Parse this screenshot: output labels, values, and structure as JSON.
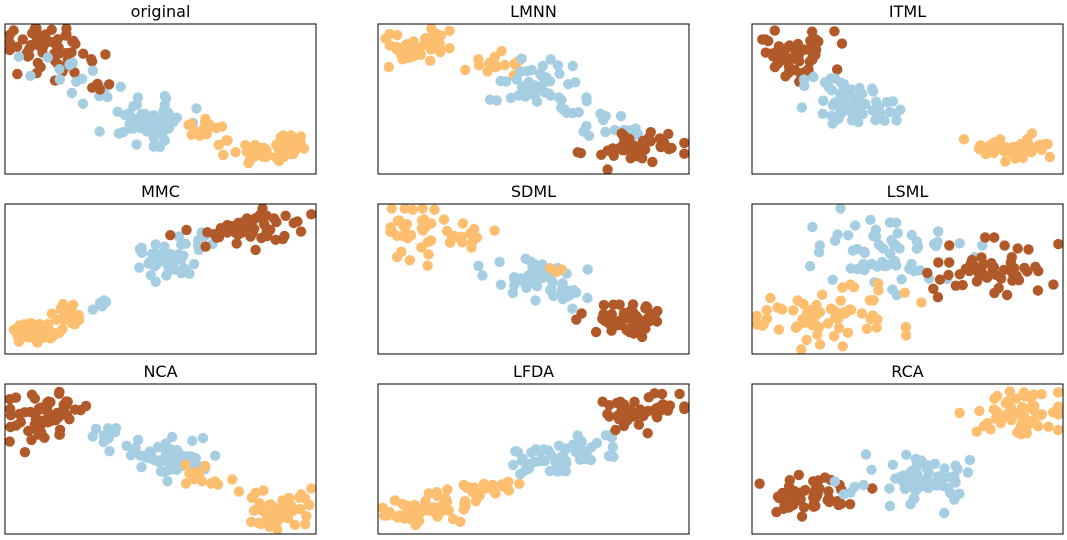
{
  "figure": {
    "background": "#ffffff",
    "class_colors": [
      "#a6cee3",
      "#fdbf6f",
      "#b15928"
    ],
    "class_color_names": [
      "light-blue",
      "light-orange",
      "brown"
    ]
  },
  "chart_data": [
    {
      "type": "scatter",
      "title": "original",
      "xlabel": "",
      "ylabel": "",
      "grid": false,
      "ticks": false,
      "xlim": [
        0,
        100
      ],
      "ylim": [
        0,
        100
      ],
      "clusters": [
        {
          "class": 2,
          "n": 60,
          "cx": 14,
          "cy": 82,
          "sx": 7.0,
          "sy": 9.0,
          "rot": 0
        },
        {
          "class": 0,
          "n": 10,
          "cx": 18,
          "cy": 74,
          "sx": 8.0,
          "sy": 9.0,
          "rot": 0
        },
        {
          "class": 0,
          "n": 8,
          "cx": 30,
          "cy": 56,
          "sx": 5.0,
          "sy": 5.0,
          "rot": 0
        },
        {
          "class": 0,
          "n": 60,
          "cx": 46,
          "cy": 36,
          "sx": 7.0,
          "sy": 7.0,
          "rot": 0
        },
        {
          "class": 2,
          "n": 5,
          "cx": 30,
          "cy": 58,
          "sx": 2.5,
          "sy": 2.5,
          "rot": 0
        },
        {
          "class": 1,
          "n": 14,
          "cx": 65,
          "cy": 30,
          "sx": 5.0,
          "sy": 3.5,
          "rot": 0
        },
        {
          "class": 1,
          "n": 55,
          "cx": 86,
          "cy": 17,
          "sx": 7.0,
          "sy": 5.0,
          "rot": 0.15
        }
      ]
    },
    {
      "type": "scatter",
      "title": "LMNN",
      "xlabel": "",
      "ylabel": "",
      "grid": false,
      "ticks": false,
      "xlim": [
        0,
        100
      ],
      "ylim": [
        0,
        100
      ],
      "clusters": [
        {
          "class": 1,
          "n": 35,
          "cx": 10,
          "cy": 82,
          "sx": 5.0,
          "sy": 5.0,
          "rot": 0
        },
        {
          "class": 1,
          "n": 12,
          "cx": 19,
          "cy": 88,
          "sx": 4.0,
          "sy": 4.0,
          "rot": 0
        },
        {
          "class": 1,
          "n": 20,
          "cx": 34,
          "cy": 72,
          "sx": 5.0,
          "sy": 4.0,
          "rot": 0
        },
        {
          "class": 0,
          "n": 40,
          "cx": 52,
          "cy": 60,
          "sx": 6.5,
          "sy": 8.5,
          "rot": 0
        },
        {
          "class": 0,
          "n": 12,
          "cx": 66,
          "cy": 40,
          "sx": 5.0,
          "sy": 6.0,
          "rot": 0
        },
        {
          "class": 0,
          "n": 10,
          "cx": 76,
          "cy": 28,
          "sx": 4.0,
          "sy": 3.0,
          "rot": 0
        },
        {
          "class": 2,
          "n": 55,
          "cx": 82,
          "cy": 17,
          "sx": 6.5,
          "sy": 5.0,
          "rot": 0
        }
      ]
    },
    {
      "type": "scatter",
      "title": "ITML",
      "xlabel": "",
      "ylabel": "",
      "grid": false,
      "ticks": false,
      "xlim": [
        0,
        100
      ],
      "ylim": [
        0,
        100
      ],
      "clusters": [
        {
          "class": 2,
          "n": 55,
          "cx": 14,
          "cy": 80,
          "sx": 6.0,
          "sy": 8.0,
          "rot": 0
        },
        {
          "class": 0,
          "n": 8,
          "cx": 22,
          "cy": 66,
          "sx": 4.0,
          "sy": 5.0,
          "rot": 0
        },
        {
          "class": 0,
          "n": 50,
          "cx": 32,
          "cy": 44,
          "sx": 6.5,
          "sy": 7.5,
          "rot": 0
        },
        {
          "class": 0,
          "n": 5,
          "cx": 43,
          "cy": 38,
          "sx": 3.0,
          "sy": 3.0,
          "rot": 0
        },
        {
          "class": 1,
          "n": 50,
          "cx": 84,
          "cy": 17,
          "sx": 8.0,
          "sy": 4.0,
          "rot": 0
        }
      ]
    },
    {
      "type": "scatter",
      "title": "MMC",
      "xlabel": "",
      "ylabel": "",
      "grid": false,
      "ticks": false,
      "xlim": [
        0,
        100
      ],
      "ylim": [
        0,
        100
      ],
      "clusters": [
        {
          "class": 1,
          "n": 45,
          "cx": 10,
          "cy": 14,
          "sx": 4.0,
          "sy": 3.0,
          "rot": 0
        },
        {
          "class": 1,
          "n": 20,
          "cx": 21,
          "cy": 26,
          "sx": 3.0,
          "sy": 4.0,
          "rot": 0
        },
        {
          "class": 0,
          "n": 6,
          "cx": 30,
          "cy": 34,
          "sx": 2.0,
          "sy": 2.0,
          "rot": 0
        },
        {
          "class": 0,
          "n": 50,
          "cx": 52,
          "cy": 64,
          "sx": 5.0,
          "sy": 6.0,
          "rot": 0
        },
        {
          "class": 0,
          "n": 6,
          "cx": 65,
          "cy": 76,
          "sx": 4.0,
          "sy": 3.0,
          "rot": 0
        },
        {
          "class": 2,
          "n": 55,
          "cx": 79,
          "cy": 84,
          "sx": 9.0,
          "sy": 5.0,
          "rot": 0.35
        }
      ]
    },
    {
      "type": "scatter",
      "title": "SDML",
      "xlabel": "",
      "ylabel": "",
      "grid": false,
      "ticks": false,
      "xlim": [
        0,
        100
      ],
      "ylim": [
        0,
        100
      ],
      "clusters": [
        {
          "class": 1,
          "n": 35,
          "cx": 13,
          "cy": 82,
          "sx": 6.0,
          "sy": 8.0,
          "rot": 0
        },
        {
          "class": 1,
          "n": 12,
          "cx": 28,
          "cy": 76,
          "sx": 4.0,
          "sy": 4.0,
          "rot": 0
        },
        {
          "class": 0,
          "n": 50,
          "cx": 51,
          "cy": 50,
          "sx": 7.0,
          "sy": 7.0,
          "rot": 0
        },
        {
          "class": 0,
          "n": 10,
          "cx": 63,
          "cy": 40,
          "sx": 4.0,
          "sy": 5.0,
          "rot": 0
        },
        {
          "class": 1,
          "n": 3,
          "cx": 58,
          "cy": 58,
          "sx": 3.0,
          "sy": 3.0,
          "rot": 0
        },
        {
          "class": 2,
          "n": 55,
          "cx": 80,
          "cy": 22,
          "sx": 6.5,
          "sy": 6.0,
          "rot": 0
        }
      ]
    },
    {
      "type": "scatter",
      "title": "LSML",
      "xlabel": "",
      "ylabel": "",
      "grid": false,
      "ticks": false,
      "xlim": [
        0,
        100
      ],
      "ylim": [
        0,
        100
      ],
      "clusters": [
        {
          "class": 0,
          "n": 60,
          "cx": 42,
          "cy": 68,
          "sx": 12.0,
          "sy": 12.0,
          "rot": 0
        },
        {
          "class": 2,
          "n": 55,
          "cx": 75,
          "cy": 55,
          "sx": 9.5,
          "sy": 9.0,
          "rot": 0
        },
        {
          "class": 1,
          "n": 65,
          "cx": 21,
          "cy": 24,
          "sx": 10.0,
          "sy": 10.0,
          "rot": 0
        },
        {
          "class": 1,
          "n": 5,
          "cx": 45,
          "cy": 42,
          "sx": 5.0,
          "sy": 4.0,
          "rot": 0
        }
      ]
    },
    {
      "type": "scatter",
      "title": "NCA",
      "xlabel": "",
      "ylabel": "",
      "grid": false,
      "ticks": false,
      "xlim": [
        0,
        100
      ],
      "ylim": [
        0,
        100
      ],
      "clusters": [
        {
          "class": 2,
          "n": 60,
          "cx": 13,
          "cy": 78,
          "sx": 6.5,
          "sy": 9.0,
          "rot": 0
        },
        {
          "class": 0,
          "n": 12,
          "cx": 31,
          "cy": 66,
          "sx": 4.0,
          "sy": 5.0,
          "rot": 0
        },
        {
          "class": 0,
          "n": 50,
          "cx": 51,
          "cy": 50,
          "sx": 7.0,
          "sy": 8.0,
          "rot": 0
        },
        {
          "class": 1,
          "n": 14,
          "cx": 64,
          "cy": 40,
          "sx": 5.0,
          "sy": 5.0,
          "rot": 0
        },
        {
          "class": 1,
          "n": 55,
          "cx": 86,
          "cy": 17,
          "sx": 6.0,
          "sy": 6.5,
          "rot": 0
        }
      ]
    },
    {
      "type": "scatter",
      "title": "LFDA",
      "xlabel": "",
      "ylabel": "",
      "grid": false,
      "ticks": false,
      "xlim": [
        0,
        100
      ],
      "ylim": [
        0,
        100
      ],
      "clusters": [
        {
          "class": 1,
          "n": 50,
          "cx": 14,
          "cy": 15,
          "sx": 8.0,
          "sy": 4.0,
          "rot": 0.35
        },
        {
          "class": 1,
          "n": 20,
          "cx": 33,
          "cy": 30,
          "sx": 7.0,
          "sy": 3.0,
          "rot": 0.3
        },
        {
          "class": 0,
          "n": 55,
          "cx": 58,
          "cy": 52,
          "sx": 9.0,
          "sy": 4.5,
          "rot": 0.45
        },
        {
          "class": 2,
          "n": 55,
          "cx": 85,
          "cy": 82,
          "sx": 7.5,
          "sy": 5.0,
          "rot": 0.45
        }
      ]
    },
    {
      "type": "scatter",
      "title": "RCA",
      "xlabel": "",
      "ylabel": "",
      "grid": false,
      "ticks": false,
      "xlim": [
        0,
        100
      ],
      "ylim": [
        0,
        100
      ],
      "clusters": [
        {
          "class": 2,
          "n": 55,
          "cx": 20,
          "cy": 25,
          "sx": 9.0,
          "sy": 6.0,
          "rot": 0.45
        },
        {
          "class": 0,
          "n": 5,
          "cx": 33,
          "cy": 30,
          "sx": 5.0,
          "sy": 4.0,
          "rot": 0
        },
        {
          "class": 0,
          "n": 60,
          "cx": 56,
          "cy": 36,
          "sx": 7.0,
          "sy": 8.0,
          "rot": 0
        },
        {
          "class": 1,
          "n": 60,
          "cx": 86,
          "cy": 80,
          "sx": 8.0,
          "sy": 7.0,
          "rot": 0
        }
      ]
    }
  ]
}
